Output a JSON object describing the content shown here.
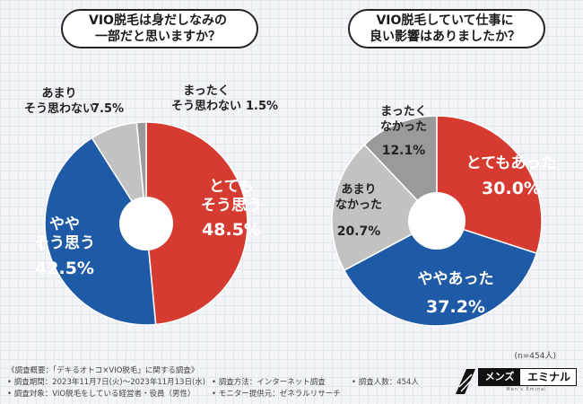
{
  "chart_data": [
    {
      "type": "pie",
      "title": "VIO脱毛は身だしなみの一部だと思いますか？",
      "title_lines": [
        "VIO脱毛は身だしなみの",
        "一部だと思いますか？"
      ],
      "slices": [
        {
          "lines": [
            "とても",
            "そう思う"
          ],
          "value": 48.5,
          "display": "48.5%",
          "color": "#d63b32"
        },
        {
          "lines": [
            "やや",
            "そう思う"
          ],
          "value": 42.5,
          "display": "42.5%",
          "color": "#1f5aa6"
        },
        {
          "lines": [
            "あまり",
            "そう思わない"
          ],
          "value": 7.5,
          "display": "7.5%",
          "color": "#c2c2c2"
        },
        {
          "lines": [
            "まったく",
            "そう思わない"
          ],
          "value": 1.5,
          "display": "1.5%",
          "color": "#9a9a9a"
        }
      ]
    },
    {
      "type": "pie",
      "title": "VIO脱毛していて仕事に良い影響はありましたか？",
      "title_lines": [
        "VIO脱毛していて仕事に",
        "良い影響はありましたか？"
      ],
      "slices": [
        {
          "lines": [
            "とてもあった"
          ],
          "value": 30.0,
          "display": "30.0%",
          "color": "#d63b32"
        },
        {
          "lines": [
            "ややあった"
          ],
          "value": 37.2,
          "display": "37.2%",
          "color": "#1f5aa6"
        },
        {
          "lines": [
            "あまり",
            "なかった"
          ],
          "value": 20.7,
          "display": "20.7%",
          "color": "#c2c2c2"
        },
        {
          "lines": [
            "まったく",
            "なかった"
          ],
          "value": 12.1,
          "display": "12.1%",
          "color": "#9a9a9a"
        }
      ]
    }
  ],
  "sample_note": "(n=454人)",
  "footer": {
    "overview": "《調査概要：「デキるオトコ×VIO脱毛」に関する調査》",
    "period": "• 調査期間：2023年11月7日(火)〜2023年11月13日(水)",
    "target": "• 調査対象：VIO脱毛をしている経営者・役員（男性）",
    "method": "• 調査方法：インターネット調査",
    "provider": "• モニター提供元：ゼネラルリサーチ",
    "count": "• 調査人数：454人"
  },
  "logo": {
    "dark": "メンズ",
    "light": "エミナル",
    "sub": "Men's Eminal"
  }
}
